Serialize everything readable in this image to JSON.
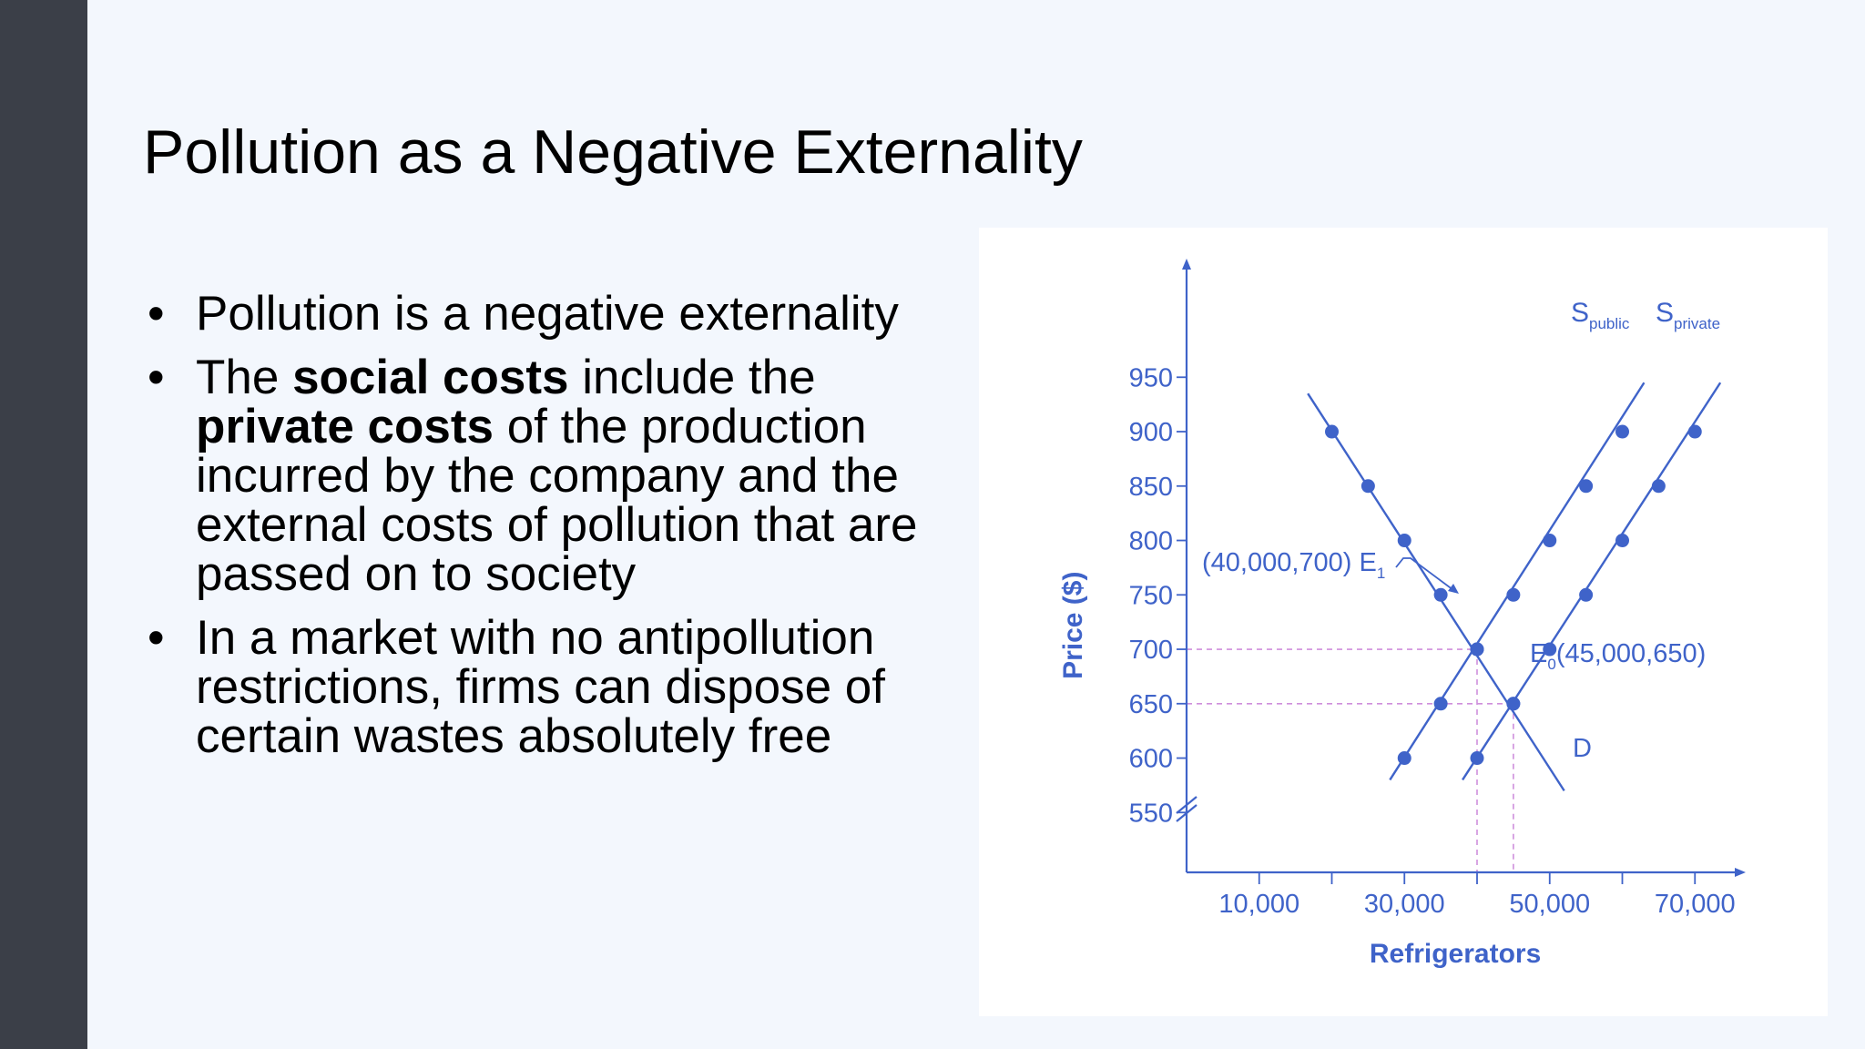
{
  "slide": {
    "title": "Pollution as a Negative Externality",
    "bullets": [
      {
        "text": "Pollution is a negative externality"
      },
      {
        "pre": "The ",
        "b1": "social costs",
        "mid": " include the ",
        "b2": "private costs",
        "post": " of the production incurred by the company and the external costs of pollution that are passed on to society"
      },
      {
        "text": "In a market with no antipollution restrictions, firms can dispose of certain wastes absolutely free"
      }
    ]
  },
  "colors": {
    "accent": "#3f63c9",
    "guide": "#cf8fdc",
    "sidebar": "#3b3f48",
    "background": "#f3f7fd"
  },
  "chart_data": {
    "type": "line",
    "xlabel": "Refrigerators",
    "ylabel": "Price ($)",
    "xlim": [
      0,
      77000
    ],
    "ylim": [
      495,
      985
    ],
    "x_ticks": [
      10000,
      30000,
      50000,
      70000
    ],
    "x_tick_labels": [
      "10,000",
      "30,000",
      "50,000",
      "70,000"
    ],
    "x_minor_ticks": [
      20000,
      40000,
      60000
    ],
    "y_ticks": [
      550,
      600,
      650,
      700,
      750,
      800,
      850,
      900,
      950
    ],
    "y_tick_labels": [
      "550",
      "600",
      "650",
      "700",
      "750",
      "800",
      "850",
      "900",
      "950"
    ],
    "series": [
      {
        "label_main": "D",
        "label_sub": "",
        "line": [
          [
            16700,
            935
          ],
          [
            52000,
            570
          ]
        ],
        "points": [
          [
            20000,
            900
          ],
          [
            25000,
            850
          ],
          [
            30000,
            800
          ],
          [
            35000,
            750
          ],
          [
            40000,
            700
          ],
          [
            45000,
            650
          ]
        ]
      },
      {
        "label_main": "S",
        "label_sub": "public",
        "line": [
          [
            28000,
            580
          ],
          [
            63000,
            945
          ]
        ],
        "points": [
          [
            30000,
            600
          ],
          [
            35000,
            650
          ],
          [
            40000,
            700
          ],
          [
            45000,
            750
          ],
          [
            50000,
            800
          ],
          [
            55000,
            850
          ],
          [
            60000,
            900
          ]
        ]
      },
      {
        "label_main": "S",
        "label_sub": "private",
        "line": [
          [
            38000,
            580
          ],
          [
            73500,
            945
          ]
        ],
        "points": [
          [
            40000,
            600
          ],
          [
            45000,
            650
          ],
          [
            50000,
            700
          ],
          [
            55000,
            750
          ],
          [
            60000,
            800
          ],
          [
            65000,
            850
          ],
          [
            70000,
            900
          ]
        ]
      }
    ],
    "annotations": {
      "e1": {
        "x": 40000,
        "y": 700,
        "pre": "(40,000,700) E",
        "sub": "1"
      },
      "e0": {
        "x": 45000,
        "y": 650,
        "pre": "E",
        "sub": "0",
        "post": "(45,000,650)"
      }
    }
  }
}
